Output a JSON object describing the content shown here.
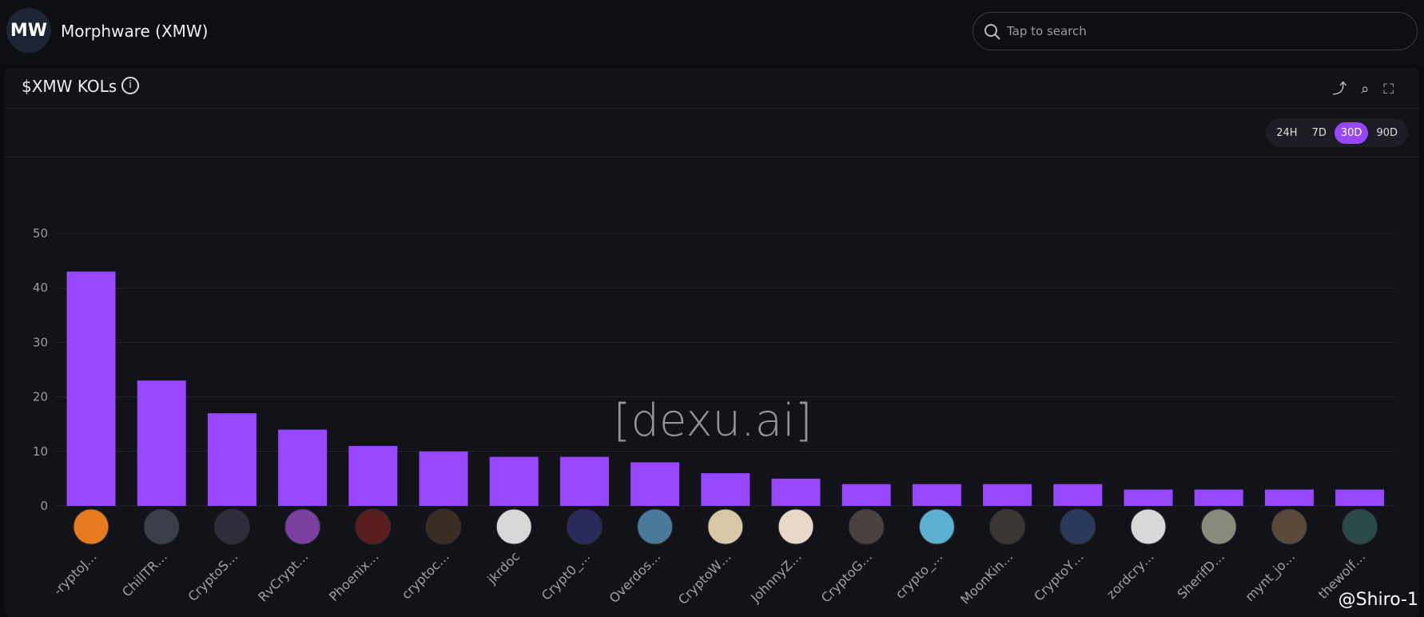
{
  "header": {
    "title": "Morphware (XMW)",
    "search_placeholder": "Tap to search"
  },
  "panel": {
    "title": "$XMW KOLs",
    "time_ranges": [
      "24H",
      "7D",
      "30D",
      "90D"
    ],
    "active_index": 2
  },
  "chart_data": {
    "type": "bar",
    "categories": [
      "-ryptoJ…",
      "ChillTR…",
      "CryptoS…",
      "RvCrypt…",
      "Phoenix…",
      "cryptoc…",
      "jkrdoc",
      "Crypt0_…",
      "Overdos…",
      "CryptoW…",
      "JohnnyZ…",
      "CryptoG…",
      "crypto_…",
      "MoonKin…",
      "CryptoY…",
      "zordcry…",
      "SherifD…",
      "mynt_jo…",
      "thewolf…"
    ],
    "values": [
      43,
      23,
      17,
      14,
      11,
      10,
      9,
      9,
      8,
      6,
      5,
      4,
      4,
      4,
      4,
      3,
      3,
      3,
      3
    ],
    "color": "#9747ff",
    "ylim": [
      0,
      50
    ],
    "yticks": [
      0,
      10,
      20,
      30,
      40,
      50
    ],
    "grid": true
  },
  "watermark": "[dexu.ai]",
  "credit": "@Shiro-1"
}
